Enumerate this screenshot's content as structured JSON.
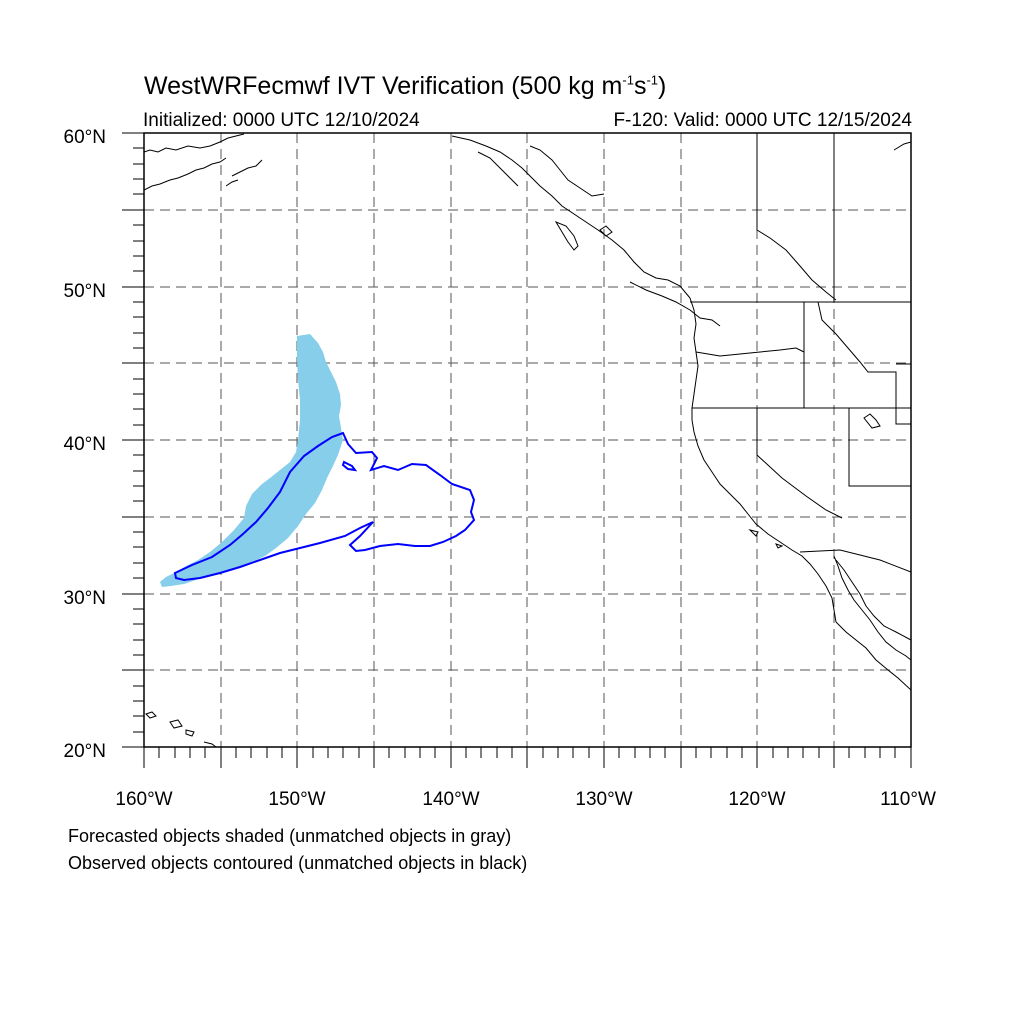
{
  "title": {
    "main": "WestWRFecmwf IVT Verification (500 kg m",
    "sup1": "-1",
    "mid": "s",
    "sup2": "-1",
    "end": ")"
  },
  "subtitle": {
    "initialized": "Initialized: 0000 UTC 12/10/2024",
    "valid": "F-120: Valid: 0000 UTC 12/15/2024"
  },
  "map": {
    "lon_range": [
      -160,
      -110
    ],
    "lat_range": [
      20,
      60
    ],
    "lat_labels": [
      "20°N",
      "30°N",
      "40°N",
      "50°N",
      "60°N"
    ],
    "lon_labels": [
      "160°W",
      "150°W",
      "140°W",
      "130°W",
      "120°W",
      "110°W"
    ],
    "grid": "dashed every 5°",
    "colors": {
      "forecast_fill": "#87ceeb",
      "observed_contour": "#0000ff",
      "coastline": "#000000",
      "grid": "#555555"
    }
  },
  "legend": {
    "forecast": "Forecasted objects shaded (unmatched objects in gray)",
    "observed": "Observed objects contoured (unmatched objects in black)"
  }
}
